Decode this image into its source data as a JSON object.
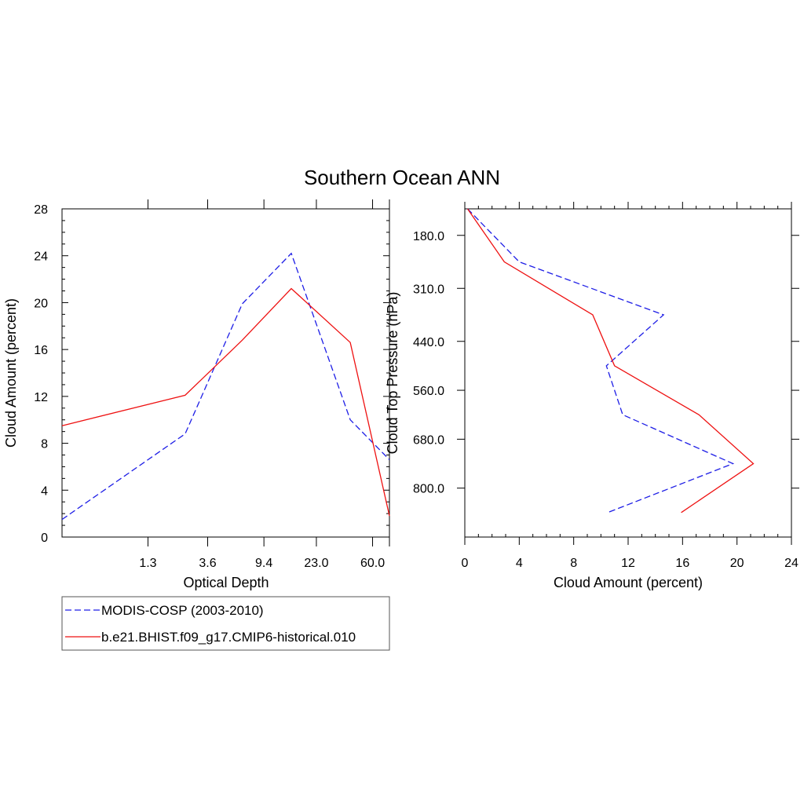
{
  "title": "Southern Ocean ANN",
  "colors": {
    "obs": "#1e1ee6",
    "model": "#ee1111"
  },
  "legend": {
    "placement": "below-left",
    "entries": [
      {
        "label": "MODIS-COSP (2003-2010)",
        "style": "dashed",
        "color": "#1e1ee6"
      },
      {
        "label": "b.e21.BHIST.f09_g17.CMIP6-historical.010",
        "style": "solid",
        "color": "#ee1111"
      }
    ]
  },
  "chart_data": [
    {
      "type": "line",
      "xlabel": "Optical Depth",
      "ylabel": "Cloud Amount (percent)",
      "x_tick_labels": [
        "1.3",
        "3.6",
        "9.4",
        "23.0",
        "60.0"
      ],
      "y_tick_labels": [
        "0",
        "4",
        "8",
        "12",
        "16",
        "20",
        "24",
        "28"
      ],
      "ylim": [
        0,
        28
      ],
      "grid": false,
      "series": [
        {
          "name": "MODIS-COSP (2003-2010)",
          "style": "dashed",
          "color": "#1e1ee6",
          "x": [
            0.3,
            2.45,
            6.5,
            15.0,
            41.0,
            80.0
          ],
          "values": [
            1.5,
            8.8,
            19.9,
            24.2,
            10.0,
            6.6
          ]
        },
        {
          "name": "b.e21.BHIST.f09_g17.CMIP6-historical.010",
          "style": "solid",
          "color": "#ee1111",
          "x": [
            0.3,
            2.45,
            6.5,
            15.0,
            41.0,
            80.0
          ],
          "values": [
            9.5,
            12.1,
            16.8,
            21.2,
            16.6,
            1.8
          ]
        }
      ]
    },
    {
      "type": "line",
      "xlabel": "Cloud Amount (percent)",
      "ylabel": "Cloud Top Pressure (hPa)",
      "x_tick_labels": [
        "0",
        "4",
        "8",
        "12",
        "16",
        "20",
        "24"
      ],
      "y_tick_labels": [
        "180.0",
        "310.0",
        "440.0",
        "560.0",
        "680.0",
        "800.0"
      ],
      "xlim": [
        0,
        24
      ],
      "grid": false,
      "series": [
        {
          "name": "MODIS-COSP (2003-2010)",
          "style": "dashed",
          "color": "#1e1ee6",
          "pressure": [
            115,
            245,
            375,
            500,
            620,
            740,
            860
          ],
          "values": [
            0.2,
            4.0,
            14.6,
            10.4,
            11.6,
            19.7,
            10.5
          ]
        },
        {
          "name": "b.e21.BHIST.f09_g17.CMIP6-historical.010",
          "style": "solid",
          "color": "#ee1111",
          "pressure": [
            115,
            245,
            375,
            500,
            620,
            740,
            860
          ],
          "values": [
            0.2,
            2.9,
            9.4,
            11.0,
            17.2,
            21.2,
            15.9
          ]
        }
      ]
    }
  ]
}
